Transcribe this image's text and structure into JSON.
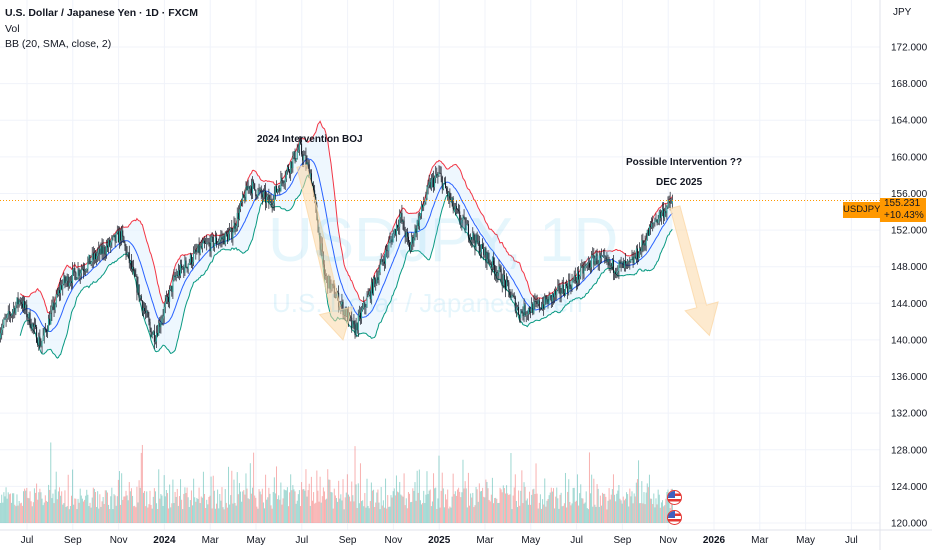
{
  "header": {
    "title": "U.S. Dollar / Japanese Yen · 1D · FXCM",
    "indicator_1": "Vol",
    "indicator_2": "BB (20, SMA, close, 2)",
    "currency": "JPY"
  },
  "watermark": {
    "symbol": "USDJPY, 1D",
    "name": "U.S. Dollar / Japanese Yen"
  },
  "price_label": {
    "symbol": "USDJPY",
    "price": "155.231",
    "change": "+10.43%"
  },
  "annotations": {
    "boj": "2024 Intervention BOJ",
    "possible": "Possible Intervention ??",
    "dec": "DEC 2025"
  },
  "colors": {
    "up": "#26a69a",
    "down": "#ef5350",
    "candle": "#131722",
    "bb_upper": "#f23645",
    "bb_lower": "#089981",
    "bb_basis": "#2962ff",
    "bb_fill": "#e3f2fd",
    "accent": "#ff9800",
    "arrow": "#fbd8a8"
  },
  "chart_data": {
    "type": "candlestick",
    "title": "U.S. Dollar / Japanese Yen · 1D · FXCM",
    "x_unit": "months since Jul 2023",
    "x_ticks": [
      "Jul",
      "Sep",
      "Nov",
      "2024",
      "Mar",
      "May",
      "Jul",
      "Sep",
      "Nov",
      "2025",
      "Mar",
      "May",
      "Jul",
      "Sep",
      "Nov",
      "2026",
      "Mar",
      "May",
      "Jul"
    ],
    "x_tick_months": [
      0,
      2,
      4,
      6,
      8,
      10,
      12,
      14,
      16,
      18,
      20,
      22,
      24,
      26,
      28,
      30,
      32,
      34,
      36
    ],
    "y_ticks": [
      "172.000",
      "168.000",
      "164.000",
      "160.000",
      "156.000",
      "152.000",
      "148.000",
      "144.000",
      "140.000",
      "136.000",
      "132.000",
      "128.000",
      "124.000",
      "120.000"
    ],
    "ylim": [
      120,
      172
    ],
    "xlim": [
      -1.2,
      37.3
    ],
    "last_price": 155.231,
    "close_path": [
      [
        -1.2,
        141
      ],
      [
        -0.3,
        144.5
      ],
      [
        0.6,
        139.5
      ],
      [
        1.5,
        146
      ],
      [
        3.2,
        149.5
      ],
      [
        4.1,
        151.5
      ],
      [
        5.4,
        141
      ],
      [
        5.6,
        140.5
      ],
      [
        6.5,
        147
      ],
      [
        7.6,
        150
      ],
      [
        8.9,
        151.5
      ],
      [
        9.7,
        157
      ],
      [
        10.6,
        155
      ],
      [
        11.9,
        161
      ],
      [
        12.4,
        158
      ],
      [
        13,
        147
      ],
      [
        13.9,
        143
      ],
      [
        14.3,
        141
      ],
      [
        15.2,
        146.5
      ],
      [
        16.3,
        153.5
      ],
      [
        16.7,
        150
      ],
      [
        17.6,
        157
      ],
      [
        18,
        158
      ],
      [
        18.7,
        154
      ],
      [
        19.8,
        150
      ],
      [
        20.7,
        147
      ],
      [
        21.1,
        145
      ],
      [
        21.5,
        143
      ],
      [
        22.6,
        144
      ],
      [
        23.9,
        146.5
      ],
      [
        24.8,
        149
      ],
      [
        25.5,
        148
      ],
      [
        26.3,
        148
      ],
      [
        26.8,
        150
      ],
      [
        27.4,
        153
      ],
      [
        28.2,
        155.2
      ]
    ],
    "bollinger": {
      "length": 20,
      "ma": "SMA",
      "source": "close",
      "mult": 2
    },
    "forecast_arrows": [
      {
        "from": [
          12.0,
          159
        ],
        "to": [
          13.8,
          140
        ]
      },
      {
        "from": [
          28.3,
          154.5
        ],
        "to": [
          29.8,
          140.5
        ]
      }
    ]
  }
}
